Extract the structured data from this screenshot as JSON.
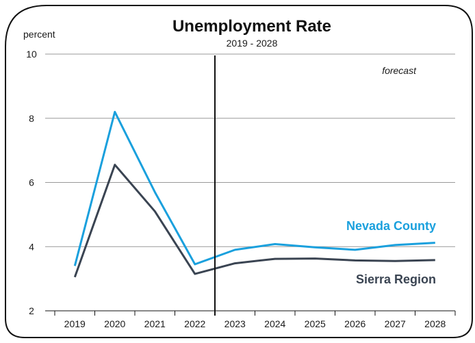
{
  "chart_data": {
    "type": "line",
    "title": "Unemployment Rate",
    "subtitle": "2019 - 2028",
    "ylabel": "percent",
    "xlabel": "",
    "ylim": [
      2,
      10
    ],
    "yticks": [
      "2",
      "4",
      "6",
      "8",
      "10"
    ],
    "categories": [
      "2019",
      "2020",
      "2021",
      "2022",
      "2023",
      "2024",
      "2025",
      "2026",
      "2027",
      "2028"
    ],
    "grid": true,
    "forecast_start": "2023",
    "annotation": "forecast",
    "series": [
      {
        "name": "Nevada County",
        "color": "#1aa0dd",
        "values": [
          3.4,
          8.2,
          5.7,
          3.45,
          3.9,
          4.08,
          3.98,
          3.9,
          4.05,
          4.12
        ]
      },
      {
        "name": "Sierra Region",
        "color": "#3a4452",
        "values": [
          3.05,
          6.55,
          5.1,
          3.15,
          3.48,
          3.62,
          3.63,
          3.57,
          3.55,
          3.58
        ]
      }
    ]
  }
}
